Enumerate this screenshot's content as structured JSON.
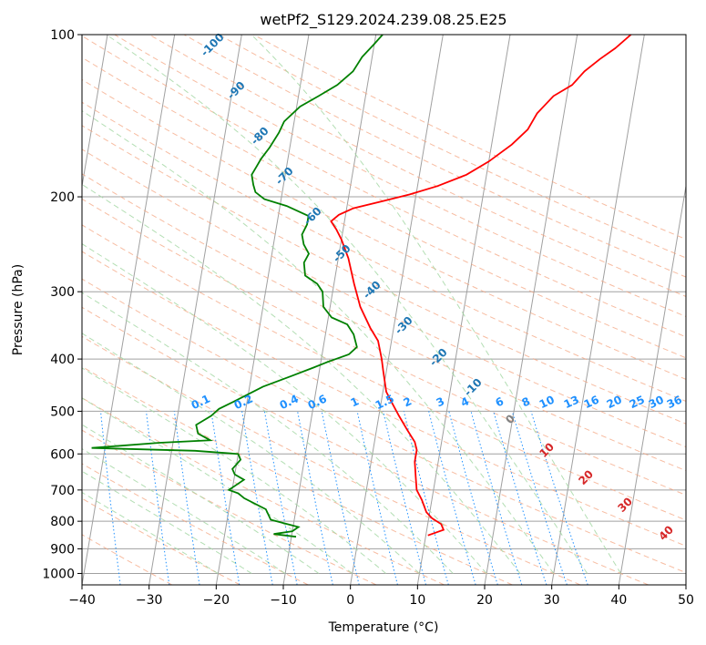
{
  "chart_data": {
    "type": "line",
    "subtype": "skew-T log-P diagram",
    "title": "wetPf2_S129.2024.239.08.25.E25",
    "xlabel": "Temperature (°C)",
    "ylabel": "Pressure (hPa)",
    "xlim": [
      -40,
      50
    ],
    "ylim": [
      1050,
      100
    ],
    "yscale": "log",
    "x_ticks": [
      "−40",
      "−30",
      "−20",
      "−10",
      "0",
      "10",
      "20",
      "30",
      "40",
      "50"
    ],
    "y_ticks": [
      "100",
      "200",
      "300",
      "400",
      "500",
      "600",
      "700",
      "800",
      "900",
      "1000"
    ],
    "grid": true,
    "series": [
      {
        "color": "#ff0000",
        "points": [
          [
            10.3,
            850
          ],
          [
            12.5,
            830
          ],
          [
            12.0,
            810
          ],
          [
            10.5,
            790
          ],
          [
            9.5,
            770
          ],
          [
            8.5,
            730
          ],
          [
            7.5,
            700
          ],
          [
            7.0,
            660
          ],
          [
            6.5,
            620
          ],
          [
            6.5,
            590
          ],
          [
            6.0,
            570
          ],
          [
            4.5,
            540
          ],
          [
            3.0,
            510
          ],
          [
            1.5,
            480
          ],
          [
            0.5,
            460
          ],
          [
            -0.5,
            420
          ],
          [
            -1.0,
            400
          ],
          [
            -2.0,
            370
          ],
          [
            -3.5,
            350
          ],
          [
            -5.5,
            320
          ],
          [
            -7.0,
            290
          ],
          [
            -8.5,
            260
          ],
          [
            -10.0,
            240
          ],
          [
            -11.0,
            230
          ],
          [
            -12.0,
            222
          ],
          [
            -11.0,
            216
          ],
          [
            -9.0,
            210
          ],
          [
            -5.0,
            204
          ],
          [
            -1.0,
            198
          ],
          [
            3.0,
            191
          ],
          [
            7.0,
            182
          ],
          [
            10.0,
            172
          ],
          [
            13.0,
            160
          ],
          [
            15.0,
            150
          ],
          [
            16.0,
            140
          ],
          [
            18.0,
            130
          ],
          [
            20.5,
            124
          ],
          [
            22.0,
            117
          ],
          [
            24.0,
            111
          ],
          [
            26.0,
            106
          ],
          [
            28.0,
            100
          ]
        ]
      },
      {
        "color": "#008000",
        "points": [
          [
            -9.3,
            855
          ],
          [
            -12.7,
            845
          ],
          [
            -10.0,
            835
          ],
          [
            -9.2,
            820
          ],
          [
            -13.5,
            795
          ],
          [
            -14.5,
            760
          ],
          [
            -18.0,
            725
          ],
          [
            -19.0,
            710
          ],
          [
            -20.5,
            700
          ],
          [
            -18.5,
            670
          ],
          [
            -20.0,
            655
          ],
          [
            -20.5,
            640
          ],
          [
            -19.5,
            615
          ],
          [
            -20.0,
            600
          ],
          [
            -26.5,
            592
          ],
          [
            -42.0,
            585
          ],
          [
            -32.0,
            572
          ],
          [
            -24.5,
            566
          ],
          [
            -26.5,
            550
          ],
          [
            -27.0,
            530
          ],
          [
            -25.0,
            510
          ],
          [
            -24.0,
            495
          ],
          [
            -22.0,
            480
          ],
          [
            -18.0,
            450
          ],
          [
            -14.0,
            430
          ],
          [
            -11.0,
            415
          ],
          [
            -9.0,
            405
          ],
          [
            -6.0,
            392
          ],
          [
            -5.0,
            380
          ],
          [
            -5.8,
            360
          ],
          [
            -7.0,
            345
          ],
          [
            -9.5,
            335
          ],
          [
            -11.0,
            320
          ],
          [
            -11.5,
            300
          ],
          [
            -12.5,
            290
          ],
          [
            -14.5,
            280
          ],
          [
            -15.0,
            265
          ],
          [
            -14.5,
            255
          ],
          [
            -15.5,
            245
          ],
          [
            -16.0,
            235
          ],
          [
            -15.5,
            225
          ],
          [
            -15.5,
            217
          ],
          [
            -19.0,
            208
          ],
          [
            -22.5,
            202
          ],
          [
            -24.0,
            196
          ],
          [
            -24.5,
            190
          ],
          [
            -25.0,
            182
          ],
          [
            -24.5,
            176
          ],
          [
            -24.0,
            170
          ],
          [
            -23.0,
            162
          ],
          [
            -22.0,
            152
          ],
          [
            -21.5,
            145
          ],
          [
            -19.5,
            136
          ],
          [
            -17.0,
            130
          ],
          [
            -14.5,
            124
          ],
          [
            -12.5,
            117
          ],
          [
            -11.5,
            110
          ],
          [
            -10.0,
            104
          ],
          [
            -9.0,
            100
          ]
        ]
      }
    ],
    "dry_adiabat_labels": [
      "-100",
      "-90",
      "-80",
      "-70",
      "-60",
      "-50",
      "-40",
      "-30",
      "-20",
      "-10",
      "0",
      "10",
      "20",
      "30",
      "40"
    ],
    "mixing_ratio_labels": [
      "0.1",
      "0.2",
      "0.4",
      "0.6",
      "1",
      "1.5",
      "2",
      "3",
      "4",
      "6",
      "8",
      "10",
      "13",
      "16",
      "20",
      "25",
      "30",
      "36"
    ],
    "colors": {
      "temperature": "#ff0000",
      "dewpoint": "#008000",
      "isotherm": "#a0a0a0",
      "dry_adiabat": "#f4a582",
      "moist_adiabat": "#a6d8a6",
      "mixing_ratio": "#1e90ff",
      "annotation_blue": "#1f77b4",
      "annotation_red": "#d62728",
      "annotation_gray": "#808080"
    }
  }
}
